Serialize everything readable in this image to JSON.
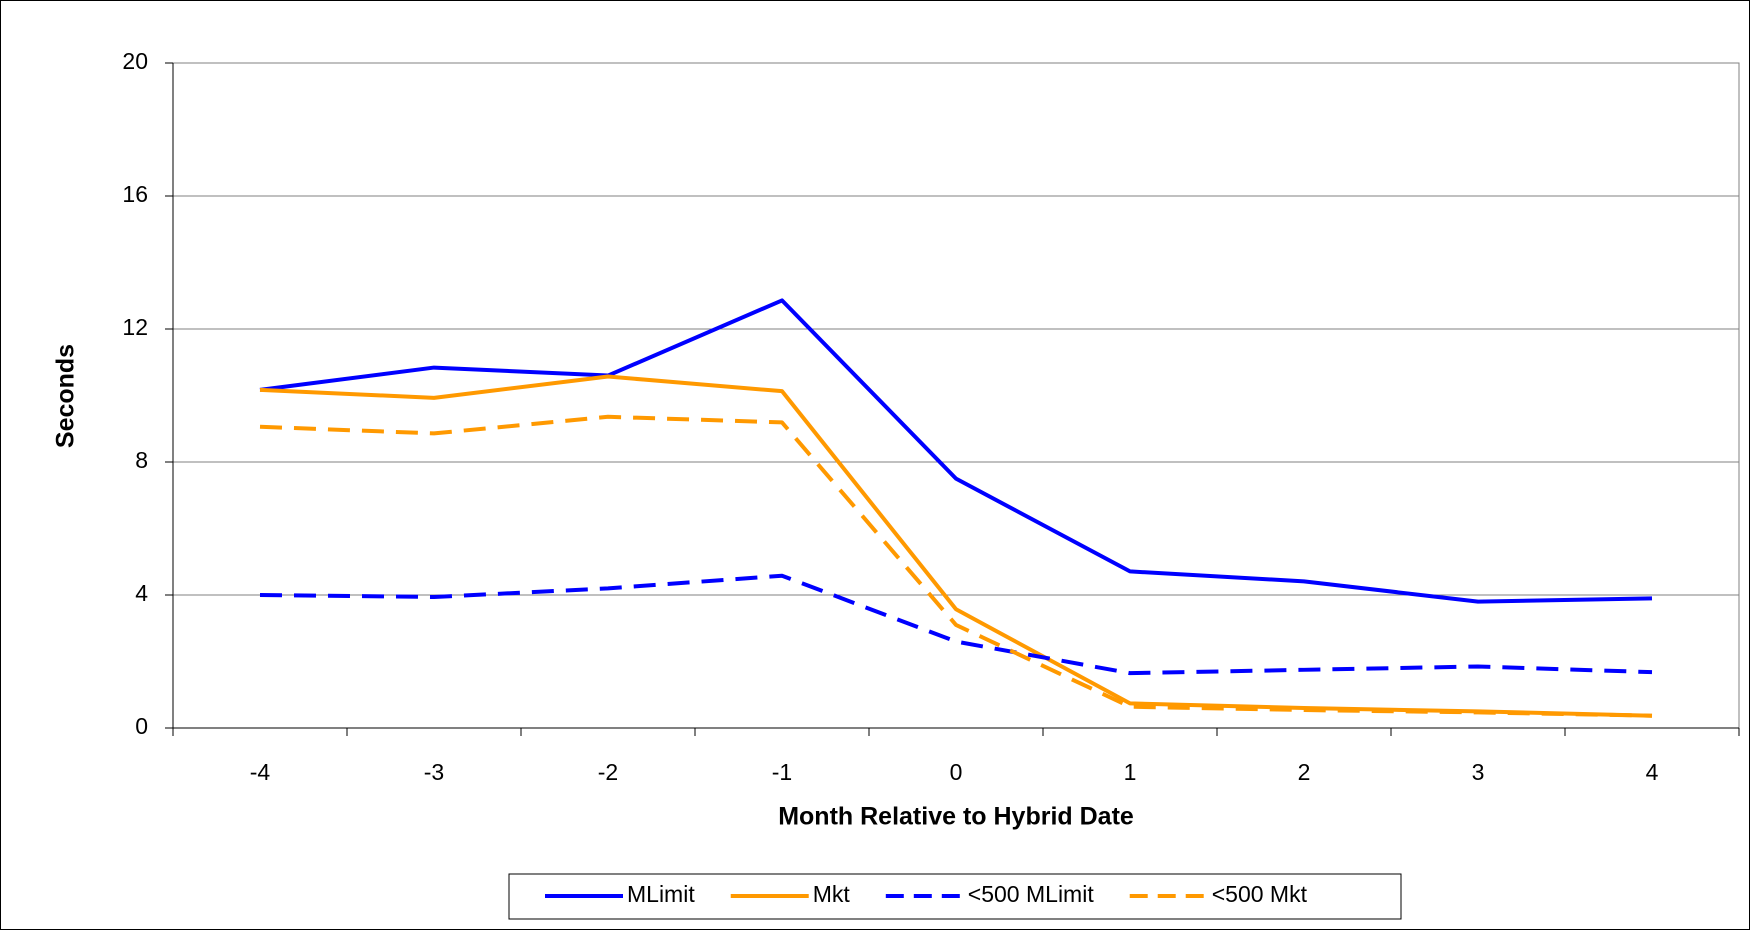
{
  "chart_data": {
    "type": "line",
    "x_label": "Month Relative to Hybrid Date",
    "y_label": "Seconds",
    "categories": [
      "-4",
      "-3",
      "-2",
      "-1",
      "0",
      "1",
      "2",
      "3",
      "4"
    ],
    "series": [
      {
        "name": "MLimit",
        "color": "#0000ff",
        "dash": "solid",
        "values": [
          10.17,
          10.84,
          10.6,
          12.86,
          7.5,
          4.71,
          4.41,
          3.8,
          3.9
        ]
      },
      {
        "name": "Mkt",
        "color": "#ff9900",
        "dash": "solid",
        "values": [
          10.17,
          9.93,
          10.57,
          10.13,
          3.57,
          0.74,
          0.6,
          0.5,
          0.37
        ]
      },
      {
        "name": "<500 MLimit",
        "color": "#0000ff",
        "dash": "dashed",
        "values": [
          4.0,
          3.94,
          4.2,
          4.58,
          2.6,
          1.65,
          1.75,
          1.85,
          1.68
        ]
      },
      {
        "name": "<500 Mkt",
        "color": "#ff9900",
        "dash": "dashed",
        "values": [
          9.06,
          8.86,
          9.36,
          9.19,
          3.1,
          0.64,
          0.54,
          0.47,
          0.37
        ]
      }
    ],
    "ylim": [
      0,
      20
    ],
    "yticks": [
      0,
      4,
      8,
      12,
      16,
      20
    ],
    "grid": true,
    "legend": "bottom"
  }
}
